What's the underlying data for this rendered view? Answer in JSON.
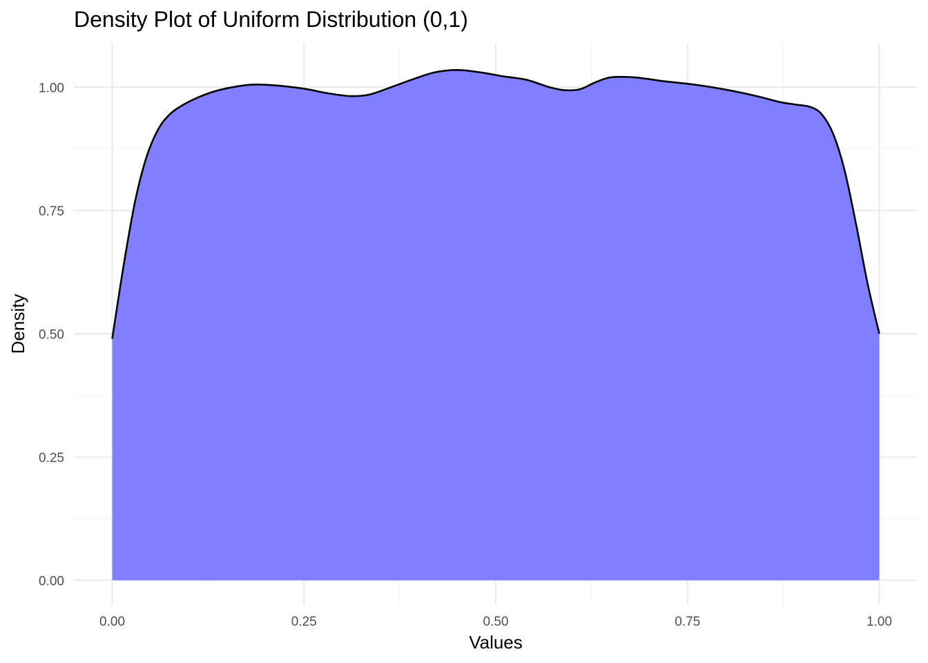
{
  "chart_data": {
    "type": "area",
    "title": "Density Plot of Uniform Distribution (0,1)",
    "xlabel": "Values",
    "ylabel": "Density",
    "xlim": [
      -0.05,
      1.05
    ],
    "ylim": [
      -0.05,
      1.09
    ],
    "x_ticks": [
      0.0,
      0.25,
      0.5,
      0.75,
      1.0
    ],
    "x_tick_labels": [
      "0.00",
      "0.25",
      "0.50",
      "0.75",
      "1.00"
    ],
    "y_ticks": [
      0.0,
      0.25,
      0.5,
      0.75,
      1.0
    ],
    "y_tick_labels": [
      "0.00",
      "0.25",
      "0.50",
      "0.75",
      "1.00"
    ],
    "grid": true,
    "fill_color": "#8080ff",
    "line_color": "#000000",
    "series": [
      {
        "x": [
          0.0,
          0.015,
          0.03,
          0.045,
          0.06,
          0.075,
          0.09,
          0.11,
          0.13,
          0.15,
          0.18,
          0.21,
          0.25,
          0.28,
          0.31,
          0.335,
          0.36,
          0.39,
          0.42,
          0.45,
          0.48,
          0.51,
          0.54,
          0.57,
          0.59,
          0.61,
          0.63,
          0.65,
          0.68,
          0.72,
          0.76,
          0.8,
          0.84,
          0.87,
          0.89,
          0.91,
          0.925,
          0.94,
          0.955,
          0.97,
          0.985,
          1.0
        ],
        "y": [
          0.49,
          0.64,
          0.77,
          0.86,
          0.915,
          0.945,
          0.962,
          0.978,
          0.99,
          0.998,
          1.005,
          1.004,
          0.997,
          0.988,
          0.982,
          0.985,
          0.998,
          1.015,
          1.03,
          1.035,
          1.03,
          1.022,
          1.015,
          1.0,
          0.994,
          0.996,
          1.01,
          1.02,
          1.02,
          1.012,
          1.005,
          0.995,
          0.982,
          0.97,
          0.965,
          0.96,
          0.945,
          0.905,
          0.83,
          0.72,
          0.6,
          0.5
        ]
      }
    ]
  }
}
